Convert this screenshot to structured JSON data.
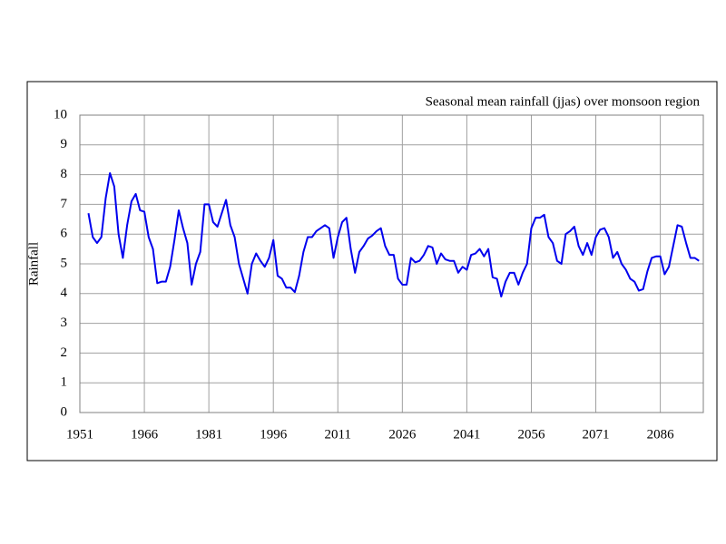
{
  "chart_data": {
    "type": "line",
    "title": "Seasonal mean rainfall (jjas) over monsoon region",
    "y_label": "Rainfall",
    "x": [
      1953,
      1954,
      1955,
      1956,
      1957,
      1958,
      1959,
      1960,
      1961,
      1962,
      1963,
      1964,
      1965,
      1966,
      1967,
      1968,
      1969,
      1970,
      1971,
      1972,
      1973,
      1974,
      1975,
      1976,
      1977,
      1978,
      1979,
      1980,
      1981,
      1982,
      1983,
      1984,
      1985,
      1986,
      1987,
      1988,
      1989,
      1990,
      1991,
      1992,
      1993,
      1994,
      1995,
      1996,
      1997,
      1998,
      1999,
      2000,
      2001,
      2002,
      2003,
      2004,
      2005,
      2006,
      2007,
      2008,
      2009,
      2010,
      2011,
      2012,
      2013,
      2014,
      2015,
      2016,
      2017,
      2018,
      2019,
      2020,
      2021,
      2022,
      2023,
      2024,
      2025,
      2026,
      2027,
      2028,
      2029,
      2030,
      2031,
      2032,
      2033,
      2034,
      2035,
      2036,
      2037,
      2038,
      2039,
      2040,
      2041,
      2042,
      2043,
      2044,
      2045,
      2046,
      2047,
      2048,
      2049,
      2050,
      2051,
      2052,
      2053,
      2054,
      2055,
      2056,
      2057,
      2058,
      2059,
      2060,
      2061,
      2062,
      2063,
      2064,
      2065,
      2066,
      2067,
      2068,
      2069,
      2070,
      2071,
      2072,
      2073,
      2074,
      2075,
      2076,
      2077,
      2078,
      2079,
      2080,
      2081,
      2082,
      2083,
      2084,
      2085,
      2086,
      2087,
      2088,
      2089,
      2090,
      2091,
      2092,
      2093,
      2094,
      2095
    ],
    "series": [
      {
        "name": "Rainfall",
        "color": "#0000ee",
        "values": [
          6.7,
          5.9,
          5.7,
          5.9,
          7.2,
          8.05,
          7.6,
          6.0,
          5.2,
          6.3,
          7.1,
          7.35,
          6.8,
          6.75,
          5.9,
          5.5,
          4.35,
          4.4,
          4.4,
          4.9,
          5.8,
          6.8,
          6.2,
          5.7,
          4.3,
          5.0,
          5.4,
          7.0,
          7.0,
          6.4,
          6.25,
          6.7,
          7.15,
          6.3,
          5.9,
          5.0,
          4.5,
          4.0,
          5.0,
          5.35,
          5.1,
          4.9,
          5.2,
          5.8,
          4.6,
          4.5,
          4.2,
          4.2,
          4.05,
          4.6,
          5.4,
          5.9,
          5.9,
          6.1,
          6.2,
          6.3,
          6.2,
          5.2,
          5.9,
          6.4,
          6.55,
          5.5,
          4.7,
          5.4,
          5.6,
          5.85,
          5.95,
          6.1,
          6.2,
          5.6,
          5.3,
          5.3,
          4.5,
          4.3,
          4.3,
          5.2,
          5.05,
          5.1,
          5.3,
          5.6,
          5.55,
          5.0,
          5.35,
          5.15,
          5.1,
          5.1,
          4.7,
          4.9,
          4.8,
          5.3,
          5.35,
          5.5,
          5.25,
          5.5,
          4.55,
          4.5,
          3.9,
          4.4,
          4.7,
          4.7,
          4.3,
          4.7,
          5.0,
          6.2,
          6.55,
          6.55,
          6.65,
          5.9,
          5.7,
          5.1,
          5.0,
          6.0,
          6.1,
          6.25,
          5.6,
          5.3,
          5.7,
          5.3,
          5.9,
          6.15,
          6.2,
          5.9,
          5.2,
          5.4,
          5.0,
          4.8,
          4.5,
          4.4,
          4.1,
          4.15,
          4.75,
          5.2,
          5.25,
          5.25,
          4.65,
          4.9,
          5.6,
          6.3,
          6.25,
          5.7,
          5.2,
          5.2,
          5.1
        ]
      }
    ],
    "xlim": [
      1951,
      2096
    ],
    "xticks": [
      1951,
      1966,
      1981,
      1996,
      2011,
      2026,
      2041,
      2056,
      2071,
      2086
    ],
    "ylim": [
      0,
      10
    ],
    "yticks": [
      0,
      1,
      2,
      3,
      4,
      5,
      6,
      7,
      8,
      9,
      10
    ],
    "grid": true
  }
}
